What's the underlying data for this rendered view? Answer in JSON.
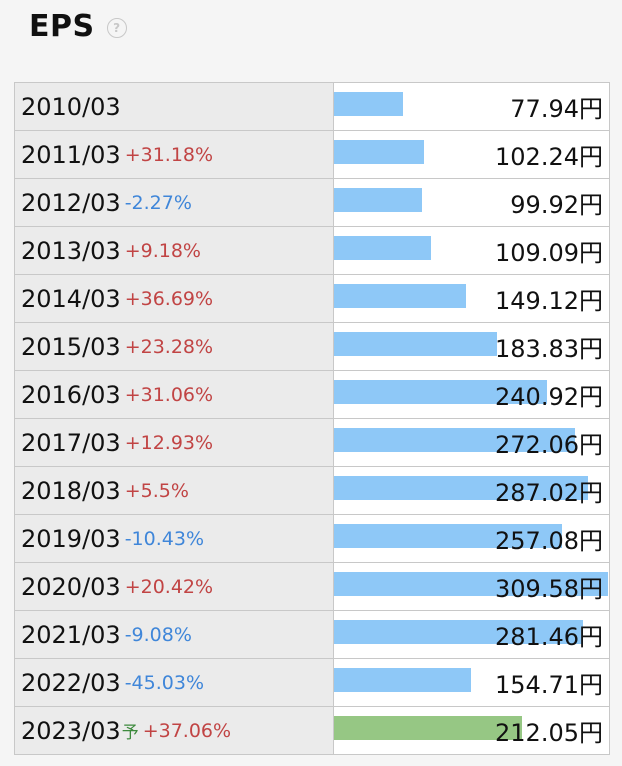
{
  "header": {
    "title": "EPS"
  },
  "chart_data": {
    "type": "bar",
    "title": "EPS",
    "unit": "円",
    "rows": [
      {
        "label": "2010/03",
        "change": "",
        "value": 77.94,
        "value_text": "77.94円",
        "forecast": false
      },
      {
        "label": "2011/03",
        "change": "+31.18%",
        "value": 102.24,
        "value_text": "102.24円",
        "forecast": false
      },
      {
        "label": "2012/03",
        "change": "-2.27%",
        "value": 99.92,
        "value_text": "99.92円",
        "forecast": false
      },
      {
        "label": "2013/03",
        "change": "+9.18%",
        "value": 109.09,
        "value_text": "109.09円",
        "forecast": false
      },
      {
        "label": "2014/03",
        "change": "+36.69%",
        "value": 149.12,
        "value_text": "149.12円",
        "forecast": false
      },
      {
        "label": "2015/03",
        "change": "+23.28%",
        "value": 183.83,
        "value_text": "183.83円",
        "forecast": false
      },
      {
        "label": "2016/03",
        "change": "+31.06%",
        "value": 240.92,
        "value_text": "240.92円",
        "forecast": false
      },
      {
        "label": "2017/03",
        "change": "+12.93%",
        "value": 272.06,
        "value_text": "272.06円",
        "forecast": false
      },
      {
        "label": "2018/03",
        "change": "+5.5%",
        "value": 287.02,
        "value_text": "287.02円",
        "forecast": false
      },
      {
        "label": "2019/03",
        "change": "-10.43%",
        "value": 257.08,
        "value_text": "257.08円",
        "forecast": false
      },
      {
        "label": "2020/03",
        "change": "+20.42%",
        "value": 309.58,
        "value_text": "309.58円",
        "forecast": false
      },
      {
        "label": "2021/03",
        "change": "-9.08%",
        "value": 281.46,
        "value_text": "281.46円",
        "forecast": false
      },
      {
        "label": "2022/03",
        "change": "-45.03%",
        "value": 154.71,
        "value_text": "154.71円",
        "forecast": false
      },
      {
        "label": "2023/03",
        "forecast_mark": "予",
        "change": "+37.06%",
        "value": 212.05,
        "value_text": "212.05円",
        "forecast": true
      }
    ],
    "colors": {
      "actual_bar": "#8ec8f7",
      "forecast_bar": "#96c784",
      "positive_change": "#c14444",
      "negative_change": "#3f86d9"
    }
  }
}
